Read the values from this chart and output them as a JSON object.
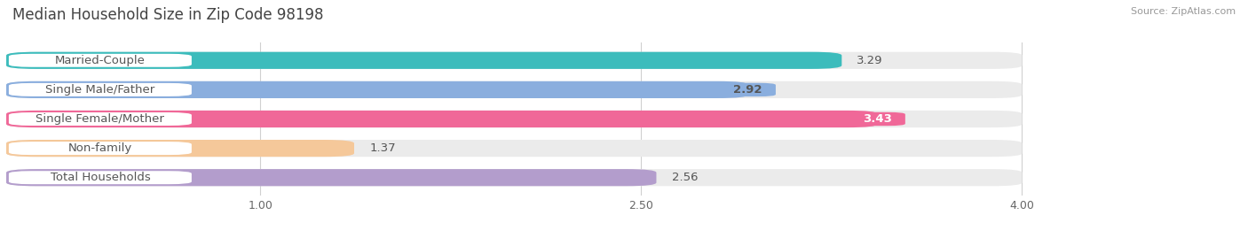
{
  "title": "Median Household Size in Zip Code 98198",
  "source": "Source: ZipAtlas.com",
  "categories": [
    "Married-Couple",
    "Single Male/Father",
    "Single Female/Mother",
    "Non-family",
    "Total Households"
  ],
  "values": [
    3.29,
    2.92,
    3.43,
    1.37,
    2.56
  ],
  "bar_colors": [
    "#3cbcbc",
    "#8aaede",
    "#f06898",
    "#f5c89a",
    "#b39dcc"
  ],
  "value_inside": [
    false,
    true,
    true,
    false,
    false
  ],
  "value_colors_inside": [
    "#ffffff",
    "#555555",
    "#ffffff",
    "#555555",
    "#555555"
  ],
  "xlim_min": 0.0,
  "xlim_max": 4.3,
  "xticks": [
    1.0,
    2.5,
    4.0
  ],
  "label_fontsize": 9.5,
  "value_fontsize": 9.5,
  "title_fontsize": 12,
  "background_color": "#ffffff",
  "bar_bg_color": "#ebebeb",
  "grid_color": "#d0d0d0",
  "label_text_color": "#555555",
  "source_color": "#999999"
}
